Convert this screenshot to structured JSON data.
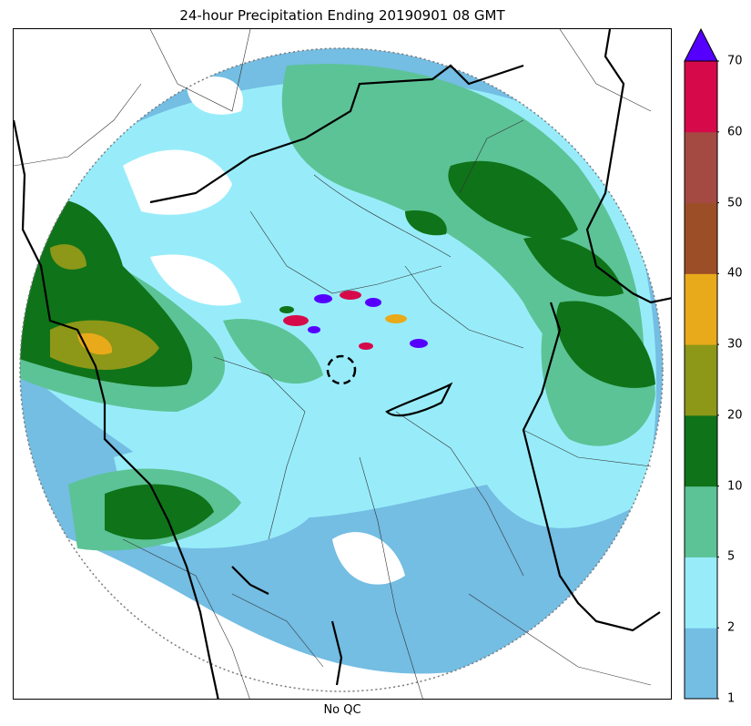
{
  "title": "24-hour Precipitation Ending 20190901 08 GMT",
  "xlabel": "No QC",
  "colorbar": {
    "levels": [
      1,
      2,
      5,
      10,
      20,
      30,
      40,
      50,
      60,
      70
    ],
    "tick_labels": [
      "1",
      "2",
      "5",
      "10",
      "20",
      "30",
      "40",
      "50",
      "60",
      "70"
    ],
    "colors": [
      "#74bde3",
      "#98ecfa",
      "#5cc396",
      "#0f7319",
      "#8d9718",
      "#e8aa1a",
      "#9c4f26",
      "#a44a42",
      "#d60a4a"
    ],
    "extend_max_color": "#5500ff"
  },
  "map": {
    "background": "#ffffff",
    "radar_range_ring": "dotted",
    "radar_center_ring": "dashed",
    "border_color": "#000000"
  }
}
